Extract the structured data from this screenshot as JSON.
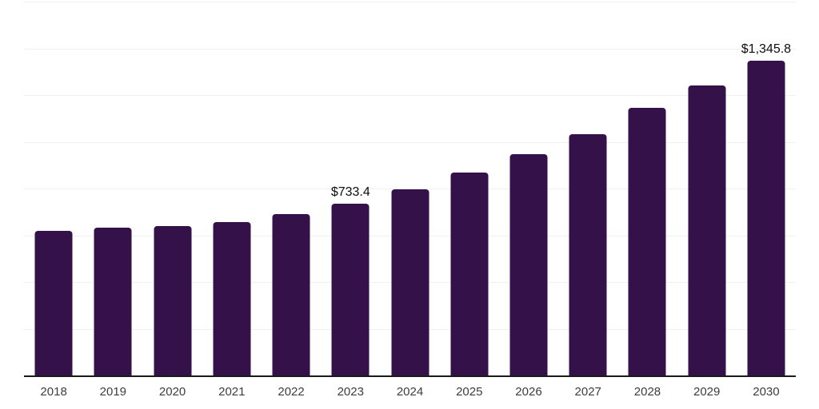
{
  "chart_data": {
    "type": "bar",
    "title": "",
    "xlabel": "",
    "ylabel": "",
    "categories": [
      "2018",
      "2019",
      "2020",
      "2021",
      "2022",
      "2023",
      "2024",
      "2025",
      "2026",
      "2027",
      "2028",
      "2029",
      "2030"
    ],
    "values": [
      620,
      634,
      638,
      657,
      690,
      733.4,
      798,
      869,
      948,
      1033,
      1144,
      1240,
      1345.8
    ],
    "data_labels": [
      {
        "category": "2023",
        "text": "$733.4"
      },
      {
        "category": "2030",
        "text": "$1,345.8"
      }
    ],
    "ylim": [
      0,
      1600
    ],
    "grid_interval": 200,
    "grid": true,
    "legend": "none",
    "colors": {
      "bar": "#341249",
      "gridline": "#f0f0f0",
      "axis_line": "#1a1a1a",
      "tick_label": "#3d3d3d",
      "data_label": "#0d0d0d",
      "background": "#ffffff"
    }
  }
}
